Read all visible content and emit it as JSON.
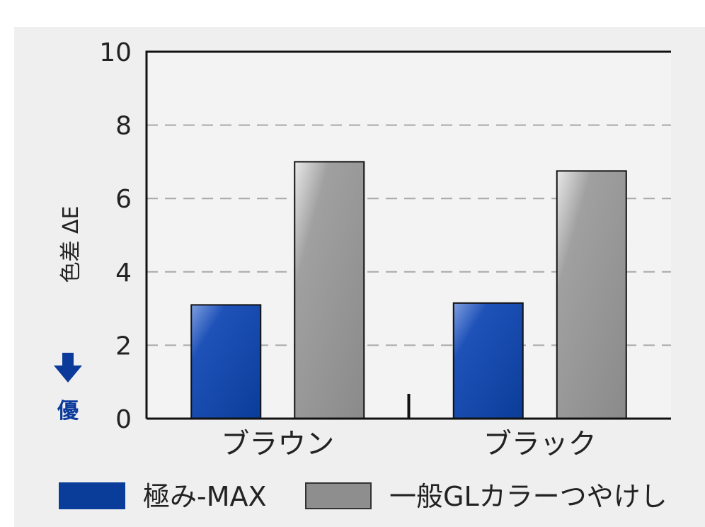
{
  "chart_data": {
    "type": "bar",
    "categories": [
      "ブラウン",
      "ブラック"
    ],
    "series": [
      {
        "name": "極み-MAX",
        "values": [
          3.1,
          3.15
        ],
        "color": "#0a3d99"
      },
      {
        "name": "一般GLカラーつやけし",
        "values": [
          7.0,
          6.75
        ],
        "color": "#8e8e8e"
      }
    ],
    "ylabel": "色差 ΔE",
    "ylabel_hint": "優",
    "ylim": [
      0,
      10
    ],
    "yticks": [
      0,
      2,
      4,
      6,
      8,
      10
    ],
    "grid": true,
    "legend_position": "bottom"
  }
}
